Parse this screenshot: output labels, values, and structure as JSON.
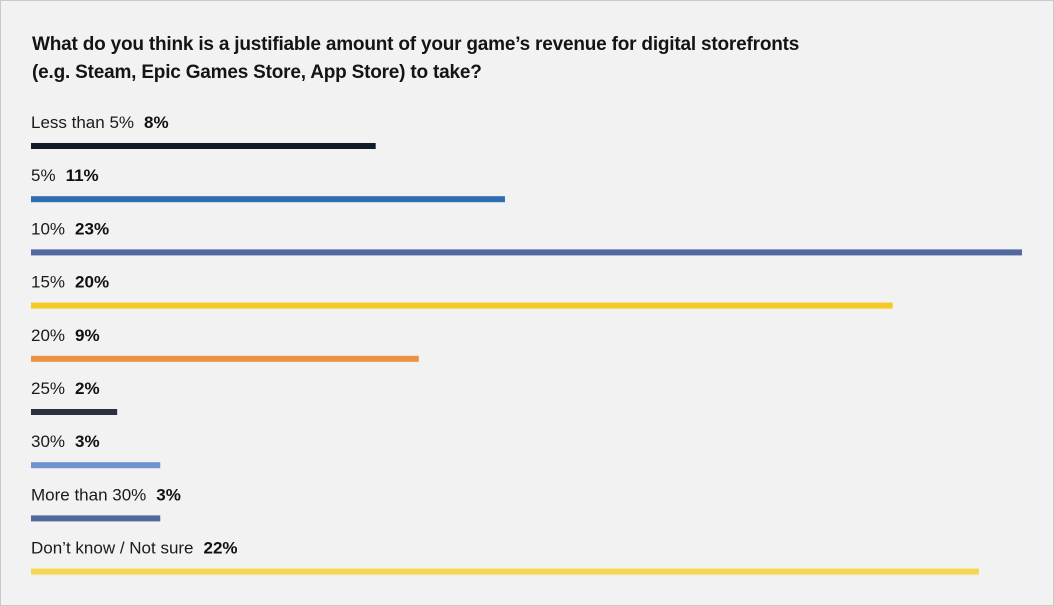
{
  "chart_data": {
    "type": "bar",
    "orientation": "horizontal",
    "title": "What do you think is a justifiable amount of your game’s revenue for digital storefronts",
    "subtitle": "(e.g. Steam, Epic Games Store, App Store) to take?",
    "xlabel": "",
    "ylabel": "",
    "grid": false,
    "legend": "none",
    "categories": [
      "Less than 5%",
      "5%",
      "10%",
      "15%",
      "20%",
      "25%",
      "30%",
      "More than 30%",
      "Don’t know / Not sure"
    ],
    "values": [
      8,
      11,
      23,
      20,
      9,
      2,
      3,
      3,
      22
    ],
    "value_labels": [
      "8%",
      "11%",
      "23%",
      "20%",
      "9%",
      "2%",
      "3%",
      "3%",
      "22%"
    ],
    "xlim": [
      0,
      23
    ],
    "colors": [
      "#111a2b",
      "#2f6cb0",
      "#5468a0",
      "#f5cb22",
      "#ec9242",
      "#2c2f40",
      "#6f93cf",
      "#53679f",
      "#f7d652"
    ]
  }
}
